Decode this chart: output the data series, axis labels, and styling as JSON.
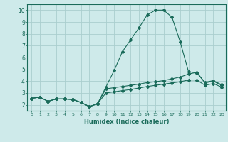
{
  "title": "",
  "xlabel": "Humidex (Indice chaleur)",
  "ylabel": "",
  "bg_color": "#ceeaea",
  "grid_color": "#aacece",
  "line_color": "#1a6b5a",
  "xlim": [
    -0.5,
    23.5
  ],
  "ylim": [
    1.5,
    10.5
  ],
  "yticks": [
    2,
    3,
    4,
    5,
    6,
    7,
    8,
    9,
    10
  ],
  "xticks": [
    0,
    1,
    2,
    3,
    4,
    5,
    6,
    7,
    8,
    9,
    10,
    11,
    12,
    13,
    14,
    15,
    16,
    17,
    18,
    19,
    20,
    21,
    22,
    23
  ],
  "series1_x": [
    0,
    1,
    2,
    3,
    4,
    5,
    6,
    7,
    8,
    9,
    10,
    11,
    12,
    13,
    14,
    15,
    16,
    17,
    18,
    19,
    20,
    21,
    22,
    23
  ],
  "series1_y": [
    2.55,
    2.65,
    2.3,
    2.5,
    2.5,
    2.45,
    2.2,
    1.85,
    2.1,
    3.5,
    4.9,
    6.5,
    7.5,
    8.5,
    9.6,
    10.0,
    10.0,
    9.4,
    7.3,
    4.8,
    4.7,
    3.9,
    4.05,
    3.7
  ],
  "series2_x": [
    0,
    1,
    2,
    3,
    4,
    5,
    6,
    7,
    8,
    9,
    10,
    11,
    12,
    13,
    14,
    15,
    16,
    17,
    18,
    19,
    20,
    21,
    22,
    23
  ],
  "series2_y": [
    2.55,
    2.65,
    2.3,
    2.5,
    2.5,
    2.45,
    2.2,
    1.85,
    2.1,
    3.35,
    3.45,
    3.55,
    3.65,
    3.75,
    3.88,
    3.95,
    4.05,
    4.2,
    4.35,
    4.6,
    4.75,
    3.85,
    4.0,
    3.65
  ],
  "series3_x": [
    0,
    1,
    2,
    3,
    4,
    5,
    6,
    7,
    8,
    9,
    10,
    11,
    12,
    13,
    14,
    15,
    16,
    17,
    18,
    19,
    20,
    21,
    22,
    23
  ],
  "series3_y": [
    2.55,
    2.65,
    2.3,
    2.5,
    2.5,
    2.45,
    2.2,
    1.85,
    2.1,
    3.0,
    3.1,
    3.2,
    3.3,
    3.42,
    3.55,
    3.65,
    3.75,
    3.85,
    3.95,
    4.1,
    4.1,
    3.65,
    3.8,
    3.5
  ],
  "marker": "D",
  "markersize": 2.0,
  "linewidth": 0.8
}
